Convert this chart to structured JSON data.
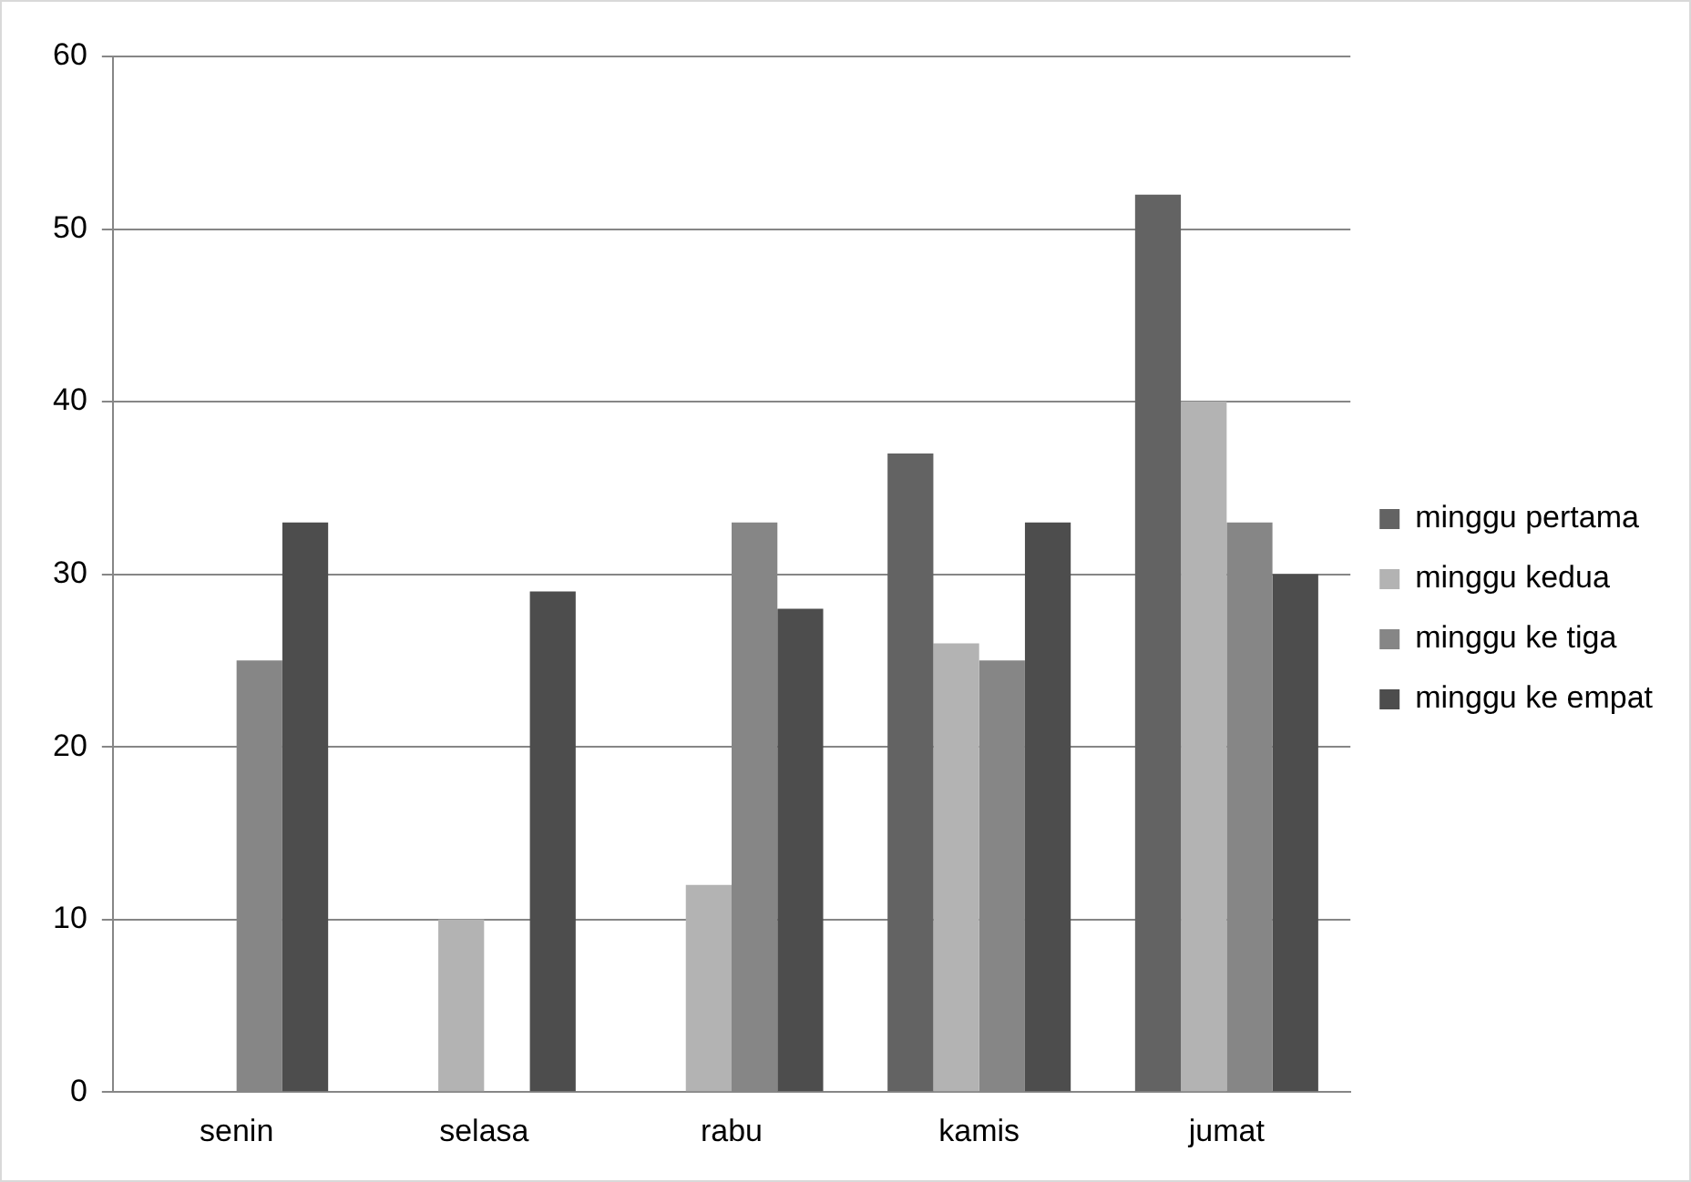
{
  "chart_data": {
    "type": "bar",
    "categories": [
      "senin",
      "selasa",
      "rabu",
      "kamis",
      "jumat"
    ],
    "series": [
      {
        "name": "minggu pertama",
        "color": "#636363",
        "values": [
          0,
          0,
          0,
          37,
          52
        ]
      },
      {
        "name": "minggu kedua",
        "color": "#b3b3b3",
        "values": [
          0,
          10,
          12,
          26,
          40
        ]
      },
      {
        "name": "minggu ke tiga",
        "color": "#868686",
        "values": [
          25,
          0,
          33,
          25,
          33
        ]
      },
      {
        "name": "minggu ke empat",
        "color": "#4d4d4d",
        "values": [
          33,
          29,
          28,
          33,
          30
        ]
      }
    ],
    "ylim": [
      0,
      60
    ],
    "yticks": [
      0,
      10,
      20,
      30,
      40,
      50,
      60
    ],
    "grid": "y",
    "legend": "right"
  }
}
